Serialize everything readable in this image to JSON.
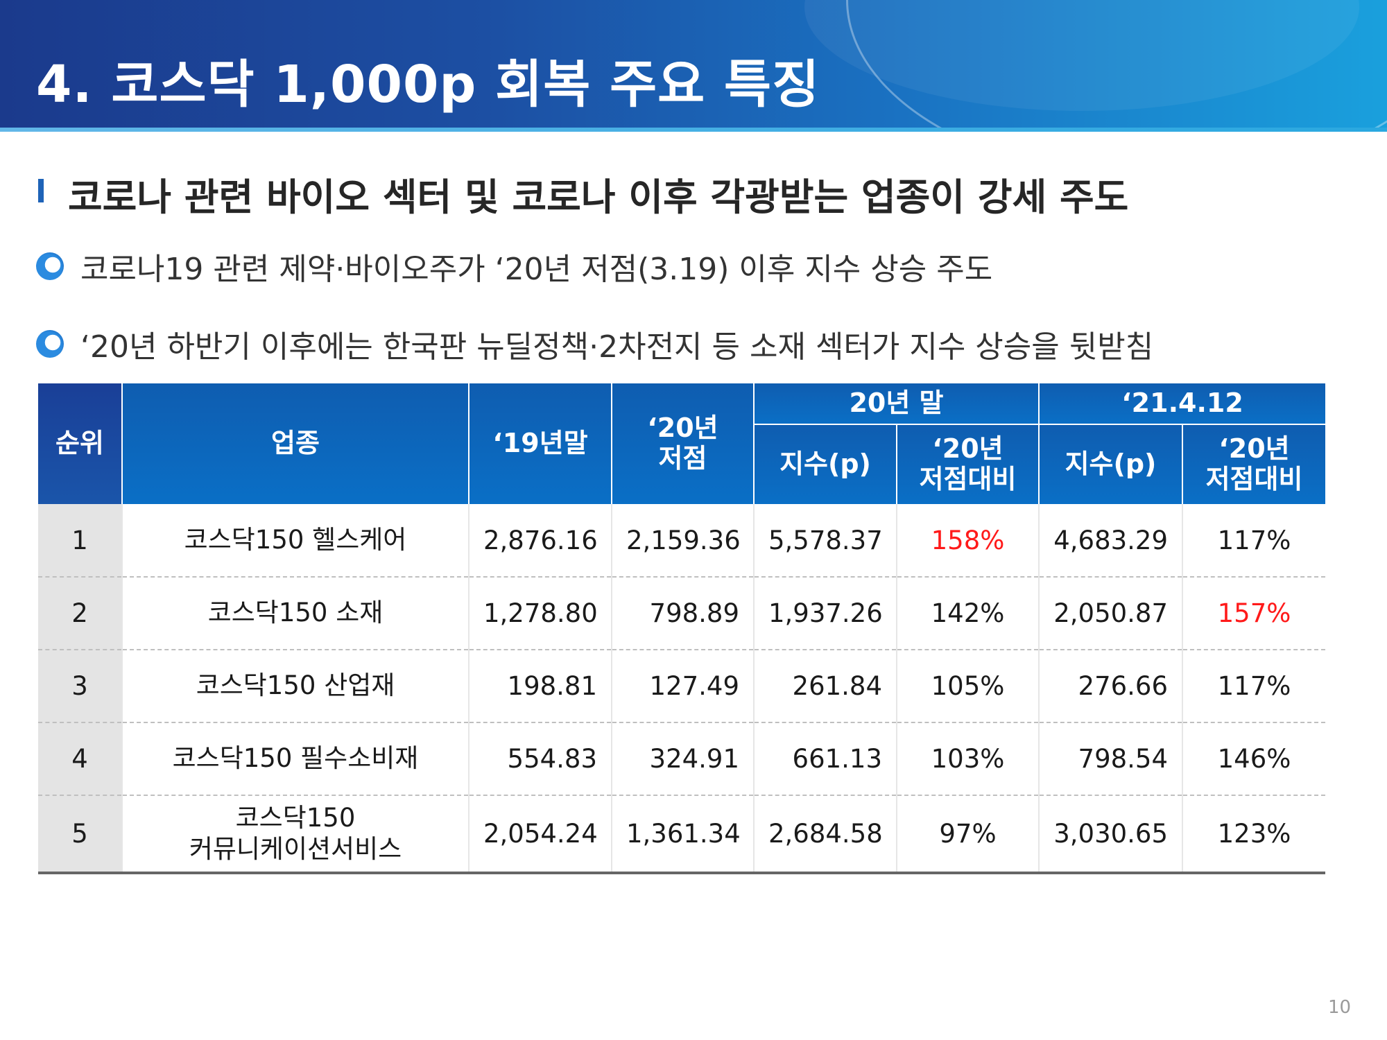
{
  "page_title": "4. 코스닥 1,000p 회복 주요 특징",
  "section_title": "코로나 관련 바이오 섹터 및 코로나 이후 각광받는 업종이 강세 주도",
  "bullets": [
    "코로나19 관련 제약·바이오주가 ‘20년 저점(3.19) 이후 지수 상승 주도",
    "‘20년 하반기 이후에는 한국판 뉴딜정책·2차전지 등 소재 섹터가 지수 상승을 뒷받침"
  ],
  "table": {
    "headers": {
      "rank": "순위",
      "sector": "업종",
      "end_19": "‘19년말",
      "low_20_line1": "‘20년",
      "low_20_line2": "저점",
      "group_end_20": "20년 말",
      "group_21": "‘21.4.12",
      "index_p": "지수(p)",
      "vs_low_line1": "‘20년",
      "vs_low_line2": "저점대비"
    },
    "rows": [
      {
        "rank": "1",
        "sector_line1": "코스닥150 헬스케어",
        "sector_line2": "",
        "end_19": "2,876.16",
        "low_20": "2,159.36",
        "end20_index": "5,578.37",
        "end20_vs": "158%",
        "d21_index": "4,683.29",
        "d21_vs": "117%",
        "end20_vs_highlight": true,
        "d21_vs_highlight": false
      },
      {
        "rank": "2",
        "sector_line1": "코스닥150 소재",
        "sector_line2": "",
        "end_19": "1,278.80",
        "low_20": "798.89",
        "end20_index": "1,937.26",
        "end20_vs": "142%",
        "d21_index": "2,050.87",
        "d21_vs": "157%",
        "end20_vs_highlight": false,
        "d21_vs_highlight": true
      },
      {
        "rank": "3",
        "sector_line1": "코스닥150 산업재",
        "sector_line2": "",
        "end_19": "198.81",
        "low_20": "127.49",
        "end20_index": "261.84",
        "end20_vs": "105%",
        "d21_index": "276.66",
        "d21_vs": "117%",
        "end20_vs_highlight": false,
        "d21_vs_highlight": false
      },
      {
        "rank": "4",
        "sector_line1": "코스닥150 필수소비재",
        "sector_line2": "",
        "end_19": "554.83",
        "low_20": "324.91",
        "end20_index": "661.13",
        "end20_vs": "103%",
        "d21_index": "798.54",
        "d21_vs": "146%",
        "end20_vs_highlight": false,
        "d21_vs_highlight": false
      },
      {
        "rank": "5",
        "sector_line1": "코스닥150",
        "sector_line2": "커뮤니케이션서비스",
        "end_19": "2,054.24",
        "low_20": "1,361.34",
        "end20_index": "2,684.58",
        "end20_vs": "97%",
        "d21_index": "3,030.65",
        "d21_vs": "123%",
        "end20_vs_highlight": false,
        "d21_vs_highlight": false
      }
    ]
  },
  "page_number": "10",
  "colors": {
    "header_dark": "#1b3a8c",
    "header_light": "#1aa0dd",
    "table_header": "#0f5db0",
    "highlight_red": "#ff1a1a",
    "rank_cell_bg": "#e4e4e4"
  }
}
